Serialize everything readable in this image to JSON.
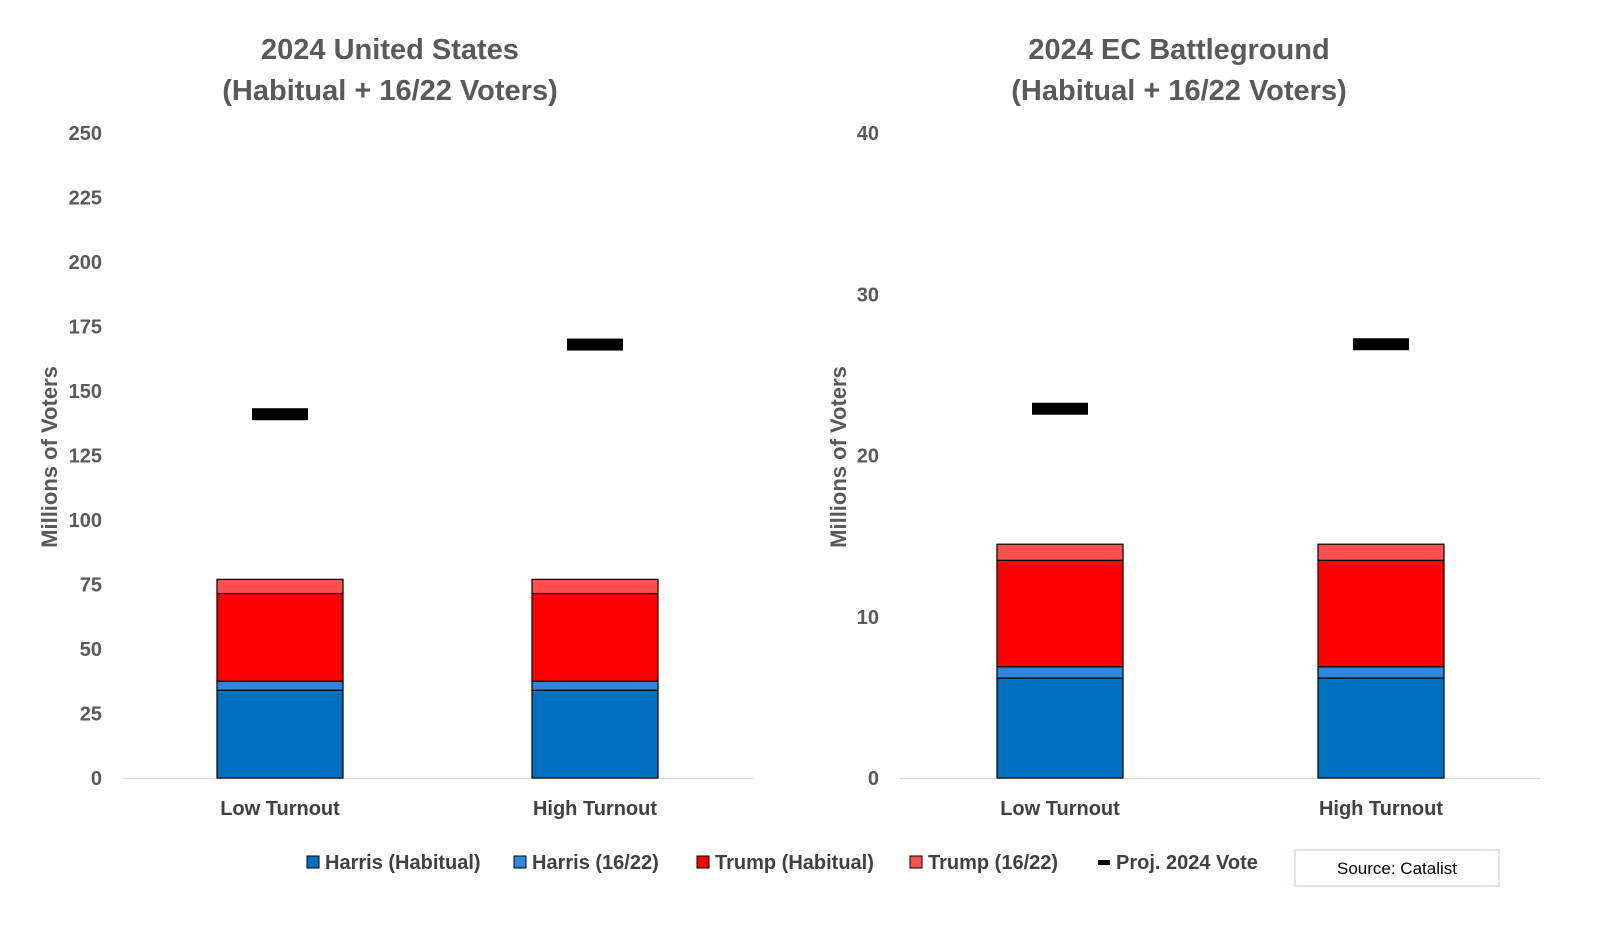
{
  "colors": {
    "harris_habitual": "#0070C0",
    "harris_1622": "#2E86DE",
    "trump_habitual": "#FF0000",
    "trump_1622": "#FF5050",
    "projection": "#000000",
    "axis": "#D9D9D9",
    "text": "#595959"
  },
  "legend": [
    {
      "label": "Harris (Habitual)",
      "color": "#0070C0",
      "kind": "square"
    },
    {
      "label": "Harris (16/22)",
      "color": "#2E86DE",
      "kind": "square"
    },
    {
      "label": "Trump (Habitual)",
      "color": "#FF0000",
      "kind": "square"
    },
    {
      "label": "Trump (16/22)",
      "color": "#FF5050",
      "kind": "square"
    },
    {
      "label": "Proj. 2024 Vote",
      "color": "#000000",
      "kind": "dash"
    }
  ],
  "source": "Source: Catalist",
  "chart_data": [
    {
      "type": "bar",
      "stacked": true,
      "title_lines": [
        "2024 United States",
        "(Habitual + 16/22 Voters)"
      ],
      "ylabel": "Millions of Voters",
      "ylim": [
        0,
        250
      ],
      "yticks": [
        0,
        25,
        50,
        75,
        100,
        125,
        150,
        175,
        200,
        225,
        250
      ],
      "categories": [
        "Low Turnout",
        "High Turnout"
      ],
      "series": [
        {
          "name": "Harris (Habitual)",
          "values": [
            34,
            34
          ]
        },
        {
          "name": "Harris (16/22)",
          "values": [
            3.5,
            3.5
          ]
        },
        {
          "name": "Trump (Habitual)",
          "values": [
            34,
            34
          ]
        },
        {
          "name": "Trump (16/22)",
          "values": [
            5.5,
            5.5
          ]
        }
      ],
      "projection": {
        "name": "Proj. 2024 Vote",
        "values": [
          141,
          168
        ]
      },
      "grid": false
    },
    {
      "type": "bar",
      "stacked": true,
      "title_lines": [
        "2024 EC Battleground",
        "(Habitual + 16/22 Voters)"
      ],
      "ylabel": "Millions of Voters",
      "ylim": [
        0,
        40
      ],
      "yticks": [
        0,
        10,
        20,
        30,
        40
      ],
      "categories": [
        "Low Turnout",
        "High Turnout"
      ],
      "series": [
        {
          "name": "Harris (Habitual)",
          "values": [
            6.2,
            6.2
          ]
        },
        {
          "name": "Harris (16/22)",
          "values": [
            0.7,
            0.7
          ]
        },
        {
          "name": "Trump (Habitual)",
          "values": [
            6.6,
            6.6
          ]
        },
        {
          "name": "Trump (16/22)",
          "values": [
            1.0,
            1.0
          ]
        }
      ],
      "projection": {
        "name": "Proj. 2024 Vote",
        "values": [
          22.9,
          26.9
        ]
      },
      "grid": false
    }
  ]
}
